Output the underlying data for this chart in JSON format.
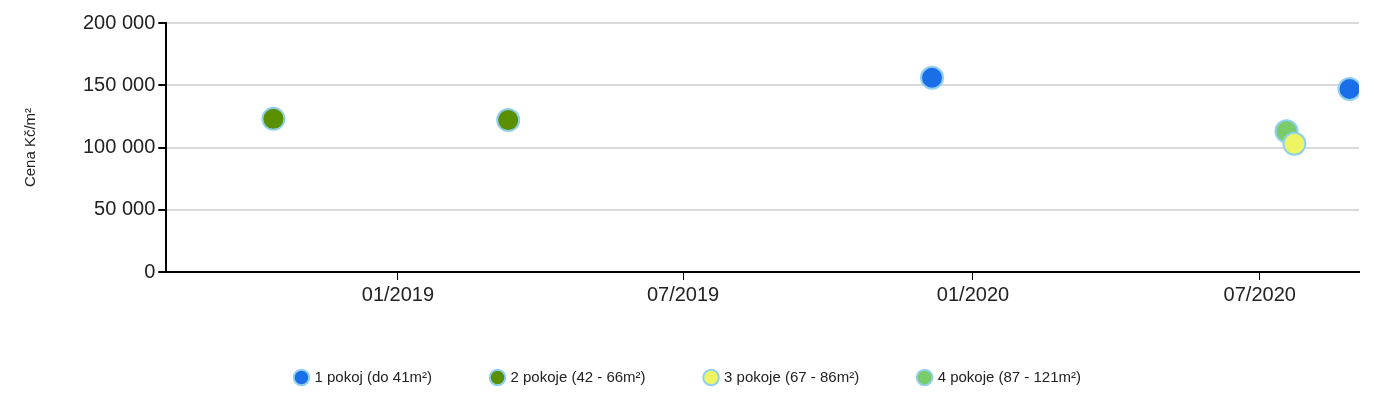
{
  "chart_data": {
    "type": "scatter",
    "ylabel": "Cena Kč/m²",
    "xlim": [
      "2018-08-07",
      "2020-09-02"
    ],
    "xticks": [
      {
        "value": "2019-01-01",
        "label": "01/2019"
      },
      {
        "value": "2019-07-01",
        "label": "07/2019"
      },
      {
        "value": "2020-01-01",
        "label": "01/2020"
      },
      {
        "value": "2020-07-01",
        "label": "07/2020"
      }
    ],
    "ylim": [
      0,
      200000
    ],
    "yticks": [
      {
        "value": 0,
        "label": "0"
      },
      {
        "value": 50000,
        "label": "50 000"
      },
      {
        "value": 100000,
        "label": "100 000"
      },
      {
        "value": 150000,
        "label": "150 000"
      },
      {
        "value": 200000,
        "label": "200 000"
      }
    ],
    "series": [
      {
        "name": "1 pokoj (do 41m²)",
        "color": "#1a6fe8",
        "x": [
          "2019-12-06",
          "2020-08-27"
        ],
        "values": [
          156000,
          147000
        ]
      },
      {
        "name": "2 pokoje (42 - 66m²)",
        "color": "#5a8f00",
        "x": [
          "2018-10-14",
          "2019-03-12"
        ],
        "values": [
          123000,
          122000
        ]
      },
      {
        "name": "3 pokoje (67 - 86m²)",
        "color": "#eef562",
        "x": [
          "2020-07-23"
        ],
        "values": [
          103000
        ]
      },
      {
        "name": "4 pokoje (87 - 121m²)",
        "color": "#7acb6a",
        "x": [
          "2020-07-18"
        ],
        "values": [
          113000
        ]
      }
    ],
    "marker": "circle",
    "grid": "y",
    "legend": "bottom"
  }
}
